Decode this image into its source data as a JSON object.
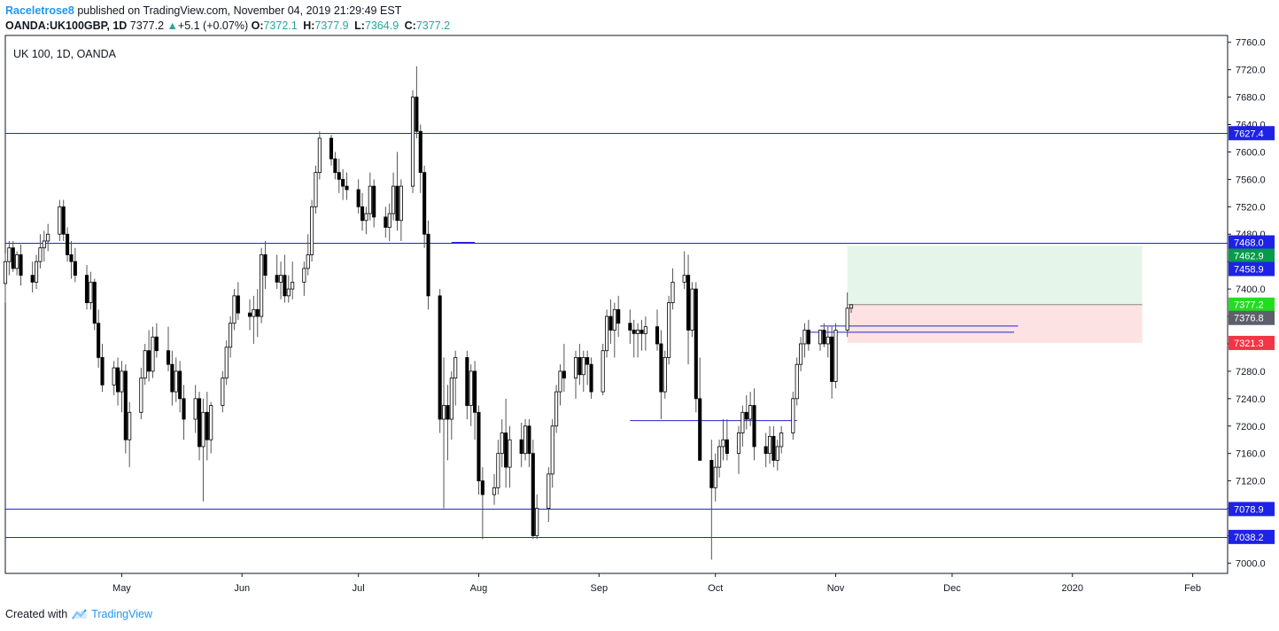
{
  "header": {
    "author": "Raceletrose8",
    "published_text": "published on TradingView.com, November 04, 2019 21:29:49 EST",
    "symbol": "OANDA:UK100GBP, 1D",
    "last": "7377.2",
    "change": "+5.1 (+0.07%)",
    "o_label": "O:",
    "o_value": "7372.1",
    "h_label": "H:",
    "h_value": "7377.9",
    "l_label": "L:",
    "l_value": "7364.9",
    "c_label": "C:",
    "c_value": "7377.2"
  },
  "footer": {
    "created_with": "Created with",
    "brand": "TradingView"
  },
  "chart_data": {
    "type": "candlestick",
    "title": "UK 100, 1D, OANDA",
    "y_range": [
      6985,
      7770
    ],
    "y_ticks": [
      "7000.0",
      "7040.0",
      "7080.0",
      "7120.0",
      "7160.0",
      "7200.0",
      "7240.0",
      "7280.0",
      "7320.0",
      "7360.0",
      "7400.0",
      "7440.0",
      "7480.0",
      "7520.0",
      "7560.0",
      "7600.0",
      "7640.0",
      "7680.0",
      "7720.0",
      "7760.0"
    ],
    "x_range": [
      "2019-04-01",
      "2020-02-10"
    ],
    "x_ticks": [
      {
        "label": "May",
        "date": "2019-05-01"
      },
      {
        "label": "Jun",
        "date": "2019-06-01"
      },
      {
        "label": "Jul",
        "date": "2019-07-01"
      },
      {
        "label": "Aug",
        "date": "2019-08-01"
      },
      {
        "label": "Sep",
        "date": "2019-09-01"
      },
      {
        "label": "Oct",
        "date": "2019-10-01"
      },
      {
        "label": "Nov",
        "date": "2019-11-01"
      },
      {
        "label": "Dec",
        "date": "2019-12-01"
      },
      {
        "label": "2020",
        "date": "2020-01-01"
      },
      {
        "label": "Feb",
        "date": "2020-02-01"
      }
    ],
    "candles_ohlc": [
      [
        7408,
        7452,
        7380,
        7440
      ],
      [
        7440,
        7470,
        7420,
        7460
      ],
      [
        7460,
        7470,
        7425,
        7430
      ],
      [
        7430,
        7455,
        7420,
        7450
      ],
      [
        7450,
        7465,
        7405,
        7420
      ],
      [
        7420,
        7440,
        7395,
        7410
      ],
      [
        7410,
        7450,
        7400,
        7440
      ],
      [
        7440,
        7480,
        7430,
        7460
      ],
      [
        7460,
        7485,
        7440,
        7470
      ],
      [
        7470,
        7495,
        7455,
        7480
      ],
      [
        7480,
        7530,
        7470,
        7520
      ],
      [
        7520,
        7530,
        7470,
        7480
      ],
      [
        7480,
        7490,
        7440,
        7450
      ],
      [
        7450,
        7470,
        7415,
        7440
      ],
      [
        7440,
        7460,
        7410,
        7420
      ],
      [
        7420,
        7435,
        7370,
        7380
      ],
      [
        7380,
        7425,
        7370,
        7410
      ],
      [
        7410,
        7415,
        7340,
        7350
      ],
      [
        7350,
        7370,
        7285,
        7300
      ],
      [
        7300,
        7320,
        7250,
        7260
      ],
      [
        7260,
        7295,
        7245,
        7285
      ],
      [
        7285,
        7300,
        7230,
        7250
      ],
      [
        7250,
        7295,
        7220,
        7280
      ],
      [
        7280,
        7290,
        7160,
        7180
      ],
      [
        7180,
        7235,
        7140,
        7220
      ],
      [
        7220,
        7285,
        7210,
        7270
      ],
      [
        7270,
        7320,
        7260,
        7310
      ],
      [
        7310,
        7340,
        7265,
        7280
      ],
      [
        7280,
        7345,
        7270,
        7330
      ],
      [
        7330,
        7350,
        7300,
        7310
      ],
      [
        7310,
        7345,
        7280,
        7290
      ],
      [
        7290,
        7310,
        7230,
        7250
      ],
      [
        7250,
        7300,
        7235,
        7280
      ],
      [
        7280,
        7295,
        7220,
        7240
      ],
      [
        7240,
        7260,
        7180,
        7210
      ],
      [
        7210,
        7260,
        7190,
        7240
      ],
      [
        7240,
        7250,
        7150,
        7170
      ],
      [
        7170,
        7240,
        7090,
        7220
      ],
      [
        7220,
        7250,
        7150,
        7180
      ],
      [
        7180,
        7235,
        7160,
        7230
      ],
      [
        7230,
        7280,
        7220,
        7270
      ],
      [
        7270,
        7325,
        7260,
        7315
      ],
      [
        7315,
        7360,
        7300,
        7350
      ],
      [
        7350,
        7400,
        7340,
        7390
      ],
      [
        7390,
        7410,
        7355,
        7365
      ],
      [
        7365,
        7385,
        7340,
        7360
      ],
      [
        7360,
        7390,
        7320,
        7370
      ],
      [
        7370,
        7400,
        7330,
        7360
      ],
      [
        7360,
        7460,
        7350,
        7450
      ],
      [
        7450,
        7470,
        7400,
        7420
      ],
      [
        7420,
        7450,
        7400,
        7410
      ],
      [
        7410,
        7440,
        7385,
        7420
      ],
      [
        7420,
        7450,
        7380,
        7390
      ],
      [
        7390,
        7420,
        7380,
        7400
      ],
      [
        7400,
        7440,
        7385,
        7410
      ],
      [
        7410,
        7440,
        7390,
        7430
      ],
      [
        7430,
        7480,
        7420,
        7450
      ],
      [
        7450,
        7530,
        7440,
        7520
      ],
      [
        7520,
        7580,
        7510,
        7570
      ],
      [
        7570,
        7630,
        7560,
        7620
      ],
      [
        7620,
        7625,
        7580,
        7590
      ],
      [
        7590,
        7600,
        7560,
        7570
      ],
      [
        7570,
        7590,
        7540,
        7560
      ],
      [
        7560,
        7575,
        7530,
        7550
      ],
      [
        7550,
        7570,
        7530,
        7545
      ],
      [
        7545,
        7560,
        7510,
        7520
      ],
      [
        7520,
        7540,
        7485,
        7500
      ],
      [
        7500,
        7520,
        7480,
        7510
      ],
      [
        7510,
        7570,
        7500,
        7550
      ],
      [
        7550,
        7560,
        7490,
        7505
      ],
      [
        7505,
        7520,
        7475,
        7490
      ],
      [
        7490,
        7525,
        7470,
        7510
      ],
      [
        7510,
        7570,
        7500,
        7550
      ],
      [
        7550,
        7600,
        7485,
        7500
      ],
      [
        7500,
        7560,
        7470,
        7550
      ],
      [
        7550,
        7690,
        7540,
        7680
      ],
      [
        7680,
        7725,
        7620,
        7630
      ],
      [
        7630,
        7640,
        7540,
        7570
      ],
      [
        7570,
        7580,
        7460,
        7480
      ],
      [
        7480,
        7500,
        7370,
        7390
      ],
      [
        7390,
        7400,
        7190,
        7210
      ],
      [
        7210,
        7300,
        7080,
        7230
      ],
      [
        7230,
        7260,
        7150,
        7210
      ],
      [
        7210,
        7280,
        7180,
        7270
      ],
      [
        7270,
        7310,
        7230,
        7300
      ],
      [
        7300,
        7310,
        7210,
        7230
      ],
      [
        7230,
        7290,
        7200,
        7280
      ],
      [
        7280,
        7295,
        7180,
        7220
      ],
      [
        7220,
        7230,
        7100,
        7120
      ],
      [
        7120,
        7140,
        7035,
        7100
      ],
      [
        7100,
        7130,
        7085,
        7110
      ],
      [
        7110,
        7180,
        7100,
        7160
      ],
      [
        7160,
        7210,
        7140,
        7190
      ],
      [
        7190,
        7240,
        7110,
        7140
      ],
      [
        7140,
        7200,
        7110,
        7180
      ],
      [
        7180,
        7205,
        7140,
        7160
      ],
      [
        7160,
        7210,
        7150,
        7200
      ],
      [
        7200,
        7210,
        7140,
        7160
      ],
      [
        7160,
        7180,
        7035,
        7040
      ],
      [
        7040,
        7100,
        7035,
        7080
      ],
      [
        7080,
        7140,
        7060,
        7130
      ],
      [
        7130,
        7210,
        7110,
        7200
      ],
      [
        7200,
        7260,
        7190,
        7250
      ],
      [
        7250,
        7290,
        7230,
        7280
      ],
      [
        7280,
        7320,
        7250,
        7270
      ],
      [
        7270,
        7310,
        7240,
        7300
      ],
      [
        7300,
        7320,
        7260,
        7275
      ],
      [
        7275,
        7310,
        7250,
        7300
      ],
      [
        7300,
        7310,
        7260,
        7290
      ],
      [
        7290,
        7300,
        7240,
        7250
      ],
      [
        7250,
        7320,
        7245,
        7310
      ],
      [
        7310,
        7370,
        7300,
        7360
      ],
      [
        7360,
        7385,
        7320,
        7340
      ],
      [
        7340,
        7380,
        7300,
        7370
      ],
      [
        7370,
        7390,
        7330,
        7350
      ],
      [
        7350,
        7370,
        7320,
        7340
      ],
      [
        7340,
        7355,
        7300,
        7335
      ],
      [
        7335,
        7350,
        7300,
        7340
      ],
      [
        7340,
        7355,
        7310,
        7335
      ],
      [
        7335,
        7360,
        7310,
        7345
      ],
      [
        7345,
        7370,
        7310,
        7320
      ],
      [
        7320,
        7340,
        7210,
        7250
      ],
      [
        7250,
        7310,
        7240,
        7300
      ],
      [
        7300,
        7390,
        7290,
        7380
      ],
      [
        7380,
        7430,
        7370,
        7410
      ],
      [
        7410,
        7455,
        7400,
        7420
      ],
      [
        7420,
        7450,
        7290,
        7340
      ],
      [
        7340,
        7410,
        7330,
        7400
      ],
      [
        7400,
        7410,
        7220,
        7240
      ],
      [
        7240,
        7300,
        7185,
        7150
      ],
      [
        7150,
        7180,
        7005,
        7110
      ],
      [
        7110,
        7160,
        7090,
        7140
      ],
      [
        7140,
        7180,
        7125,
        7170
      ],
      [
        7170,
        7210,
        7150,
        7180
      ],
      [
        7180,
        7210,
        7150,
        7160
      ],
      [
        7160,
        7200,
        7130,
        7190
      ],
      [
        7190,
        7230,
        7170,
        7220
      ],
      [
        7220,
        7245,
        7195,
        7210
      ],
      [
        7210,
        7250,
        7200,
        7230
      ],
      [
        7230,
        7255,
        7150,
        7170
      ],
      [
        7170,
        7190,
        7140,
        7160
      ],
      [
        7160,
        7200,
        7145,
        7185
      ],
      [
        7185,
        7200,
        7140,
        7150
      ],
      [
        7150,
        7180,
        7135,
        7170
      ],
      [
        7170,
        7200,
        7160,
        7190
      ],
      [
        7190,
        7250,
        7180,
        7240
      ],
      [
        7240,
        7300,
        7230,
        7290
      ],
      [
        7290,
        7330,
        7280,
        7320
      ],
      [
        7320,
        7350,
        7300,
        7340
      ],
      [
        7340,
        7355,
        7310,
        7320
      ],
      [
        7320,
        7340,
        7310,
        7340
      ],
      [
        7340,
        7350,
        7315,
        7320
      ],
      [
        7320,
        7345,
        7300,
        7330
      ],
      [
        7330,
        7345,
        7240,
        7265
      ],
      [
        7265,
        7350,
        7255,
        7340
      ],
      [
        7340,
        7395,
        7330,
        7372
      ],
      [
        7372,
        7378,
        7365,
        7377
      ]
    ],
    "horizontal_levels": [
      "7627.4",
      "7468.0",
      "7078.9",
      "7038.2"
    ],
    "trendlines": [
      {
        "from": [
          "2019-07-25",
          7468
        ],
        "to": [
          "2019-07-31",
          7468
        ]
      },
      {
        "from": [
          "2019-09-09",
          7208
        ],
        "to": [
          "2019-10-22",
          7208
        ]
      },
      {
        "from": [
          "2019-10-25",
          7337
        ],
        "to": [
          "2019-12-17",
          7337
        ]
      },
      {
        "from": [
          "2019-10-28",
          7346
        ],
        "to": [
          "2019-12-18",
          7346
        ]
      }
    ],
    "position": {
      "start": "2019-11-04",
      "end": "2020-01-19",
      "target": "7462.9",
      "entry": "7377.2",
      "stop": "7321.3"
    },
    "price_labels": [
      {
        "value": "7627.4",
        "bg": "#1e22e6"
      },
      {
        "value": "7468.0",
        "bg": "#1e22e6"
      },
      {
        "value": "7462.9",
        "bg": "#089950"
      },
      {
        "value": "7458.9",
        "bg": "#1e22e6"
      },
      {
        "value": "7377.2",
        "bg": "#22dd22"
      },
      {
        "value": "7376.8",
        "bg": "#5d606b"
      },
      {
        "value": "7321.3",
        "bg": "#f23645"
      },
      {
        "value": "7078.9",
        "bg": "#1e22e6"
      },
      {
        "value": "7038.2",
        "bg": "#1e22e6"
      }
    ],
    "colors": {
      "up_body": "#ffffff",
      "down_body": "#000000",
      "wick": "#555555",
      "level_line": "#2323d8",
      "target_zone": "#e6f5e9",
      "stop_zone": "#fde2e4",
      "axis": "#131722"
    }
  }
}
